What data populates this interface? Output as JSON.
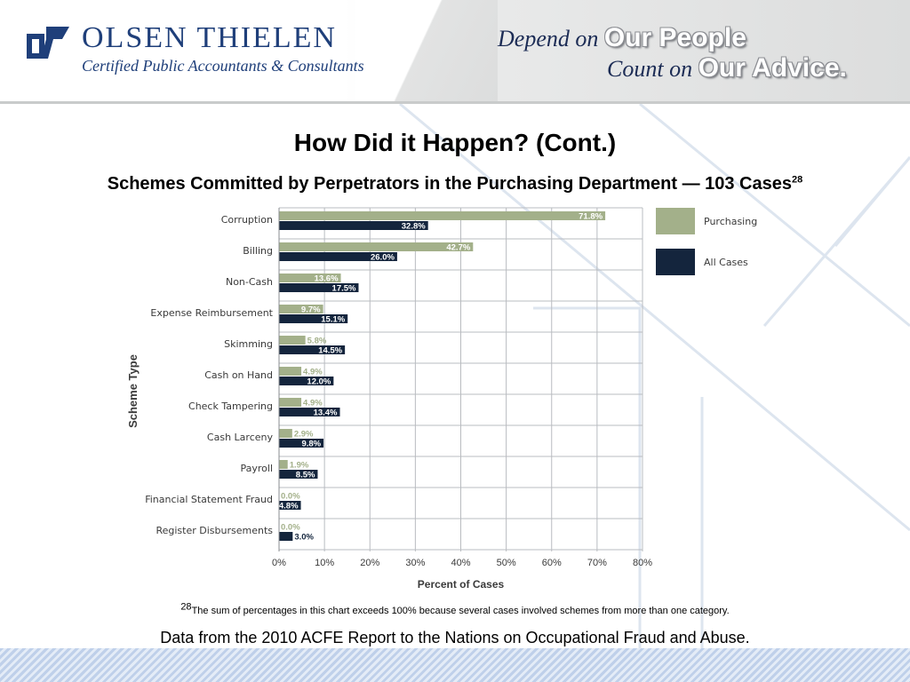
{
  "header": {
    "brand_name": "OLSEN THIELEN",
    "brand_tagline": "Certified Public Accountants & Consultants",
    "slogan_line1_a": "Depend on ",
    "slogan_line1_b": "Our People",
    "slogan_line2_a": "Count on ",
    "slogan_line2_b": "Our Advice."
  },
  "slide": {
    "title": "How Did it Happen? (Cont.)",
    "subtitle": "Schemes Committed by Perpetrators in the Purchasing Department — 103 Cases",
    "subtitle_ref": "28",
    "footnote_ref": "28",
    "footnote": "The sum of percentages in this chart exceeds 100% because several cases involved schemes from more than one category.",
    "source": "Data from the 2010 ACFE Report to the Nations on Occupational Fraud and Abuse."
  },
  "colors": {
    "purchasing": "#a3b08a",
    "all_cases": "#14253d",
    "brand": "#1f3f7a"
  },
  "chart_data": {
    "type": "bar",
    "orientation": "horizontal",
    "categories": [
      "Corruption",
      "Billing",
      "Non-Cash",
      "Expense Reimbursement",
      "Skimming",
      "Cash on Hand",
      "Check Tampering",
      "Cash Larceny",
      "Payroll",
      "Financial Statement Fraud",
      "Register Disbursements"
    ],
    "series": [
      {
        "name": "Purchasing",
        "values": [
          71.8,
          42.7,
          13.6,
          9.7,
          5.8,
          4.9,
          4.9,
          2.9,
          1.9,
          0.0,
          0.0
        ],
        "labels": [
          "71.8%",
          "42.7%",
          "13.6%",
          "9.7%",
          "5.8%",
          "4.9%",
          "4.9%",
          "2.9%",
          "1.9%",
          "0.0%",
          "0.0%"
        ]
      },
      {
        "name": "All Cases",
        "values": [
          32.8,
          26.0,
          17.5,
          15.1,
          14.5,
          12.0,
          13.4,
          9.8,
          8.5,
          4.8,
          3.0
        ],
        "labels": [
          "32.8%",
          "26.0%",
          "17.5%",
          "15.1%",
          "14.5%",
          "12.0%",
          "13.4%",
          "9.8%",
          "8.5%",
          "4.8%",
          "3.0%"
        ]
      }
    ],
    "xlabel": "Percent of Cases",
    "ylabel": "Scheme Type",
    "xlim": [
      0,
      80
    ],
    "xticks": [
      "0%",
      "10%",
      "20%",
      "30%",
      "40%",
      "50%",
      "60%",
      "70%",
      "80%"
    ],
    "grid": true,
    "legend": "right"
  }
}
